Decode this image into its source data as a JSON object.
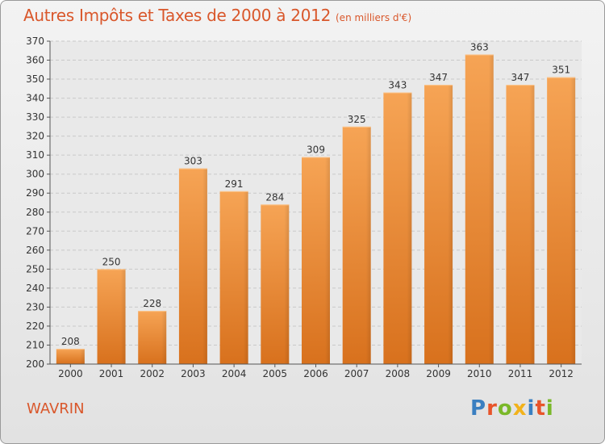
{
  "header": {
    "title": "Autres Impôts et Taxes de 2000 à 2012",
    "unit": "(en milliers d'€)"
  },
  "footer": {
    "city": "WAVRIN",
    "logo_text": "Proxiti",
    "logo_colors": [
      "#3a7fc1",
      "#e8542a",
      "#7ab829",
      "#f2b21b",
      "#3a7fc1",
      "#e8542a",
      "#7ab829"
    ]
  },
  "chart_data": {
    "type": "bar",
    "categories": [
      "2000",
      "2001",
      "2002",
      "2003",
      "2004",
      "2005",
      "2006",
      "2007",
      "2008",
      "2009",
      "2010",
      "2011",
      "2012"
    ],
    "values": [
      208,
      250,
      228,
      303,
      291,
      284,
      309,
      325,
      343,
      347,
      363,
      347,
      351
    ],
    "ylim": [
      200,
      370
    ],
    "yticks": [
      200,
      210,
      220,
      230,
      240,
      250,
      260,
      270,
      280,
      290,
      300,
      310,
      320,
      330,
      340,
      350,
      360,
      370
    ],
    "grid": true,
    "bar_color": "#f0913a"
  }
}
